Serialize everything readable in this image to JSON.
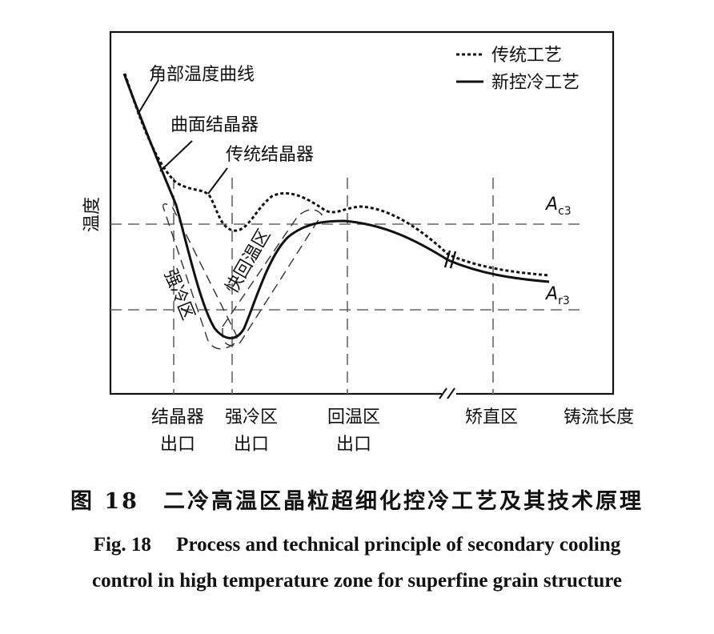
{
  "chart_data": {
    "type": "line",
    "ylabel": "温度",
    "xlabel": "铸流长度",
    "legend": [
      "传统工艺",
      "新控冷工艺"
    ],
    "legend_position": "top-right",
    "reference_lines": [
      {
        "label_main": "A",
        "label_sub": "c3"
      },
      {
        "label_main": "A",
        "label_sub": "r3"
      }
    ],
    "x_ticks": [
      {
        "line1": "结晶器",
        "line2": "出口"
      },
      {
        "line1": "强冷区",
        "line2": "出口"
      },
      {
        "line1": "回温区",
        "line2": "出口"
      },
      {
        "line1": "矫直区",
        "line2": ""
      }
    ],
    "annotations": [
      "角部温度曲线",
      "曲面结晶器",
      "传统结晶器"
    ],
    "zones": [
      "强冷区",
      "快回温区"
    ]
  },
  "caption": {
    "cn": "图 18　二冷高温区晶粒超细化控冷工艺及其技术原理",
    "en_line1": "Fig. 18　 Process and technical principle of secondary cooling",
    "en_line2": "control in high temperature zone for superfine grain structure"
  }
}
